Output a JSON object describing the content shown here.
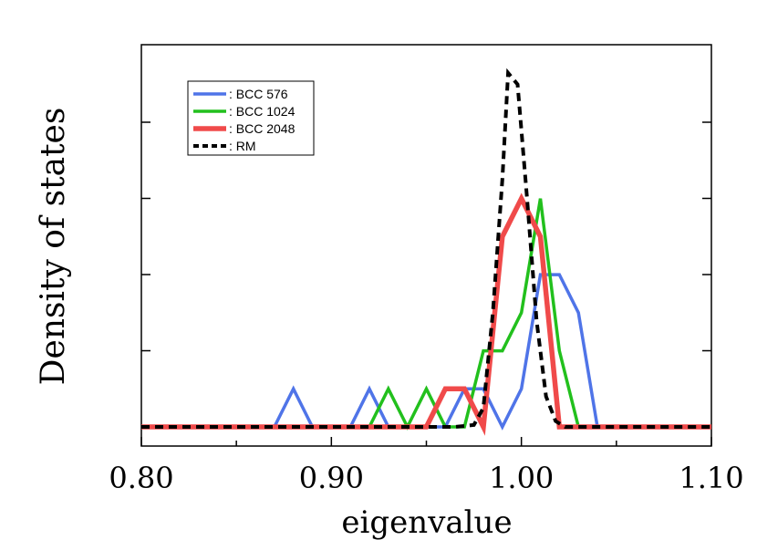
{
  "chart_data": {
    "type": "line",
    "xlabel": "eigenvalue",
    "ylabel": "Density of states",
    "xlim": [
      0.8,
      1.1
    ],
    "ylim": [
      0,
      9.3
    ],
    "x_ticks": [
      0.8,
      0.9,
      1.0,
      1.1
    ],
    "x_tick_labels": [
      "0.80",
      "0.90",
      "1.00",
      "1.10"
    ],
    "y_ticks_unlabeled": [
      2,
      4,
      6,
      8
    ],
    "legend_position": "top-left",
    "series": [
      {
        "name": ": BCC 576",
        "color": "#4f74e8",
        "style": "solid",
        "x": [
          0.8,
          0.87,
          0.88,
          0.89,
          0.91,
          0.92,
          0.93,
          0.96,
          0.97,
          0.98,
          0.99,
          1.0,
          1.01,
          1.02,
          1.03,
          1.04,
          1.1
        ],
        "y": [
          0,
          0,
          1,
          0,
          0,
          1,
          0,
          0,
          1,
          1,
          0,
          1,
          4,
          4,
          3,
          0,
          0
        ]
      },
      {
        "name": ": BCC 1024",
        "color": "#22c01d",
        "style": "solid",
        "x": [
          0.8,
          0.92,
          0.93,
          0.94,
          0.95,
          0.96,
          0.97,
          0.98,
          0.99,
          1.0,
          1.01,
          1.02,
          1.03,
          1.1
        ],
        "y": [
          0,
          0,
          1,
          0,
          1,
          0,
          0,
          2,
          2,
          3,
          6,
          2,
          0,
          0
        ]
      },
      {
        "name": ": BCC 2048",
        "color": "#f04a4a",
        "style": "thick",
        "x": [
          0.8,
          0.95,
          0.96,
          0.97,
          0.98,
          0.99,
          1.0,
          1.01,
          1.02,
          1.1
        ],
        "y": [
          0,
          0,
          1,
          1,
          0,
          5,
          6,
          5,
          0,
          0
        ]
      },
      {
        "name": ": RM",
        "color": "#000000",
        "style": "dashed",
        "x": [
          0.8,
          0.965,
          0.975,
          0.98,
          0.985,
          0.99,
          0.993,
          0.998,
          1.003,
          1.008,
          1.013,
          1.018,
          1.023,
          1.1
        ],
        "y": [
          0,
          0,
          0.05,
          0.5,
          3.0,
          6.5,
          9.3,
          9.0,
          6.0,
          2.8,
          0.8,
          0.15,
          0,
          0
        ]
      }
    ]
  }
}
